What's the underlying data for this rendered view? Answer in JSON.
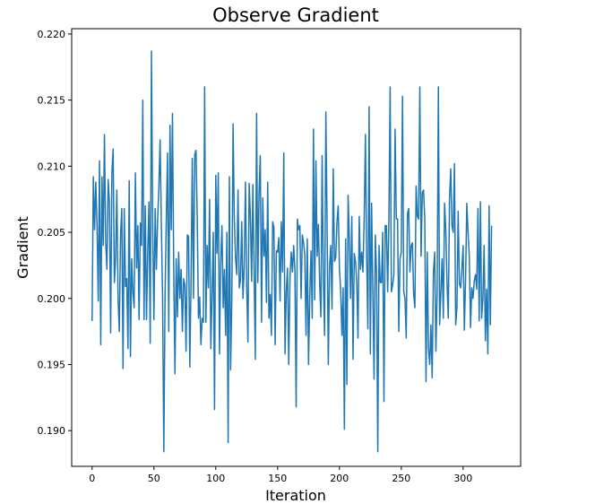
{
  "chart_data": {
    "type": "line",
    "title": "Observe Gradient",
    "xlabel": "Iteration",
    "ylabel": "Gradient",
    "xlim": [
      -16.5,
      346.5
    ],
    "ylim": [
      0.1873,
      0.2204
    ],
    "xticks": [
      0,
      50,
      100,
      150,
      200,
      250,
      300
    ],
    "yticks": [
      0.19,
      0.195,
      0.2,
      0.205,
      0.21,
      0.215,
      0.22
    ],
    "xtick_labels": [
      "0",
      "50",
      "100",
      "150",
      "200",
      "250",
      "300"
    ],
    "ytick_labels": [
      "0.190",
      "0.195",
      "0.200",
      "0.205",
      "0.210",
      "0.215",
      "0.220"
    ],
    "grid": false,
    "legend": "none",
    "line_color": "#1f77b4",
    "series": [
      {
        "values": [
          0.1983,
          0.2092,
          0.2052,
          0.2088,
          0.2055,
          0.1998,
          0.2104,
          0.1965,
          0.2092,
          0.204,
          0.2124,
          0.2042,
          0.2022,
          0.209,
          0.2073,
          0.1974,
          0.2095,
          0.2113,
          0.2012,
          0.203,
          0.2082,
          0.2,
          0.1975,
          0.2048,
          0.2068,
          0.1947,
          0.2068,
          0.2009,
          0.2015,
          0.1962,
          0.2089,
          0.1956,
          0.203,
          0.2005,
          0.1993,
          0.2095,
          0.2023,
          0.2055,
          0.1984,
          0.2057,
          0.204,
          0.215,
          0.1984,
          0.207,
          0.1984,
          0.2035,
          0.2073,
          0.1966,
          0.2187,
          0.2055,
          0.1984,
          0.2068,
          0.2022,
          0.206,
          0.2084,
          0.212,
          0.2056,
          0.2001,
          0.1884,
          0.2002,
          0.206,
          0.211,
          0.1975,
          0.2131,
          0.2052,
          0.214,
          0.2022,
          0.1943,
          0.203,
          0.1986,
          0.2035,
          0.2,
          0.2022,
          0.1975,
          0.2015,
          0.201,
          0.196,
          0.2048,
          0.2047,
          0.1948,
          0.2012,
          0.2106,
          0.2,
          0.2109,
          0.2112,
          0.2062,
          0.1985,
          0.2001,
          0.1965,
          0.1985,
          0.1982,
          0.216,
          0.1982,
          0.204,
          0.2008,
          0.2075,
          0.1962,
          0.2002,
          0.205,
          0.1916,
          0.2093,
          0.2034,
          0.2095,
          0.1958,
          0.2027,
          0.2055,
          0.1993,
          0.2022,
          0.1972,
          0.205,
          0.1891,
          0.2092,
          0.1946,
          0.2,
          0.2132,
          0.206,
          0.203,
          0.2018,
          0.2082,
          0.2008,
          0.2014,
          0.2058,
          0.2,
          0.2024,
          0.2088,
          0.201,
          0.1967,
          0.2087,
          0.2062,
          0.2013,
          0.2086,
          0.202,
          0.1954,
          0.214,
          0.2012,
          0.208,
          0.2108,
          0.1982,
          0.2076,
          0.2032,
          0.2052,
          0.1997,
          0.2088,
          0.1985,
          0.2003,
          0.1972,
          0.2058,
          0.2054,
          0.1965,
          0.2036,
          0.2035,
          0.2046,
          0.1998,
          0.2058,
          0.202,
          0.211,
          0.1958,
          0.2005,
          0.2023,
          0.195,
          0.2015,
          0.2035,
          0.202,
          0.204,
          0.2021,
          0.1918,
          0.206,
          0.2052,
          0.2055,
          0.2,
          0.2048,
          0.2042,
          0.2033,
          0.1972,
          0.2045,
          0.195,
          0.2002,
          0.2036,
          0.1985,
          0.2128,
          0.1999,
          0.2104,
          0.2032,
          0.2056,
          0.2012,
          0.1986,
          0.2108,
          0.2013,
          0.1972,
          0.2141,
          0.2058,
          0.195,
          0.2024,
          0.204,
          0.1992,
          0.2098,
          0.2028,
          0.2031,
          0.2058,
          0.207,
          0.2022,
          0.2006,
          0.1972,
          0.2008,
          0.1901,
          0.2045,
          0.1935,
          0.2078,
          0.2045,
          0.2,
          0.2062,
          0.1954,
          0.2034,
          0.2028,
          0.2012,
          0.197,
          0.2062,
          0.2022,
          0.2035,
          0.202,
          0.206,
          0.2124,
          0.2032,
          0.1977,
          0.2145,
          0.1958,
          0.2072,
          0.2006,
          0.1939,
          0.2048,
          0.2019,
          0.1884,
          0.204,
          0.2012,
          0.2012,
          0.205,
          0.1922,
          0.2055,
          0.2055,
          0.2005,
          0.206,
          0.216,
          0.2005,
          0.201,
          0.2018,
          0.2128,
          0.206,
          0.206,
          0.1975,
          0.203,
          0.2035,
          0.2153,
          0.2005,
          0.2,
          0.197,
          0.2064,
          0.2068,
          0.202,
          0.204,
          0.2042,
          0.2003,
          0.1993,
          0.2085,
          0.2062,
          0.206,
          0.216,
          0.2032,
          0.208,
          0.2082,
          0.206,
          0.1937,
          0.2035,
          0.1962,
          0.195,
          0.198,
          0.194,
          0.202,
          0.2035,
          0.196,
          0.2005,
          0.216,
          0.198,
          0.2004,
          0.203,
          0.1985,
          0.2072,
          0.2052,
          0.2011,
          0.1985,
          0.2075,
          0.2098,
          0.2055,
          0.205,
          0.2102,
          0.198,
          0.1993,
          0.2066,
          0.2011,
          0.2008,
          0.2022,
          0.204,
          0.1976,
          0.2015,
          0.2072,
          0.205,
          0.2032,
          0.1978,
          0.2008,
          0.2,
          0.2013,
          0.2018,
          0.2007,
          0.2068,
          0.1983,
          0.2073,
          0.1985,
          0.2,
          0.204,
          0.1968,
          0.2007,
          0.1958,
          0.207,
          0.198,
          0.2055
        ]
      }
    ]
  }
}
